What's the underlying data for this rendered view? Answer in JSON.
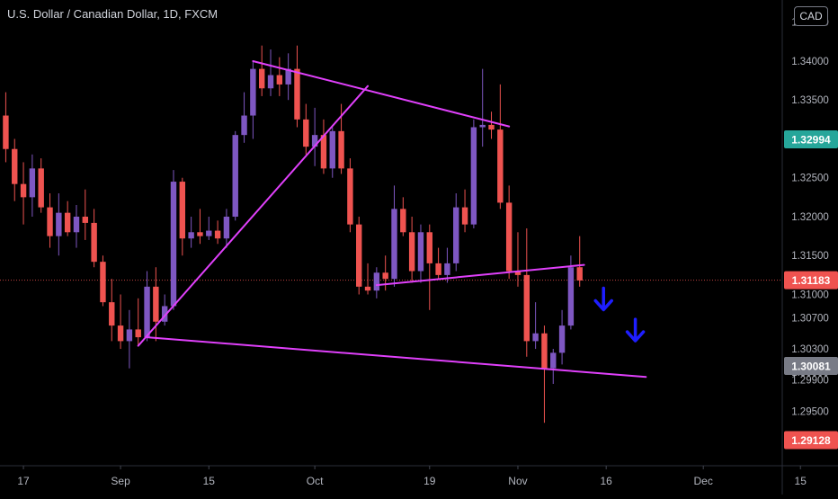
{
  "header": {
    "title": "U.S. Dollar / Canadian Dollar, 1D, FXCM",
    "currency": "CAD"
  },
  "colors": {
    "bull": "#7e57c2",
    "bear": "#ef5350",
    "trendline": "#e040fb",
    "arrow": "#1e1eff",
    "price_last": "#ef5350",
    "price_marker": "#26a69a",
    "price_gray": "#787b86",
    "price_low": "#ef5350"
  },
  "chart_data": {
    "type": "candlestick",
    "title": "U.S. Dollar / Canadian Dollar, 1D, FXCM",
    "y_ticks": [
      "1.34500",
      "1.34000",
      "1.33500",
      "1.33000",
      "1.32500",
      "1.32000",
      "1.31500",
      "1.31000",
      "1.30700",
      "1.30300",
      "1.30000",
      "1.29900",
      "1.29500"
    ],
    "x_ticks": [
      {
        "label": "17",
        "index": 3
      },
      {
        "label": "Sep",
        "index": 14
      },
      {
        "label": "15",
        "index": 24
      },
      {
        "label": "Oct",
        "index": 36
      },
      {
        "label": "19",
        "index": 49
      },
      {
        "label": "Nov",
        "index": 59
      },
      {
        "label": "16",
        "index": 69
      },
      {
        "label": "Dec",
        "index": 80
      },
      {
        "label": "15",
        "index": 91
      }
    ],
    "ylim": [
      1.2885,
      1.346
    ],
    "grid": false,
    "candles": [
      {
        "d": "Aug 13",
        "o": 1.3394,
        "h": 1.341,
        "l": 1.3325,
        "c": 1.333
      },
      {
        "d": "Aug 14",
        "o": 1.333,
        "h": 1.336,
        "l": 1.327,
        "c": 1.3287
      },
      {
        "d": "Aug 17",
        "o": 1.3287,
        "h": 1.33,
        "l": 1.322,
        "c": 1.3242
      },
      {
        "d": "Aug 18",
        "o": 1.3242,
        "h": 1.327,
        "l": 1.319,
        "c": 1.3225
      },
      {
        "d": "Aug 19",
        "o": 1.3225,
        "h": 1.328,
        "l": 1.32,
        "c": 1.3262
      },
      {
        "d": "Aug 20",
        "o": 1.3262,
        "h": 1.3275,
        "l": 1.3205,
        "c": 1.3212
      },
      {
        "d": "Aug 21",
        "o": 1.3212,
        "h": 1.323,
        "l": 1.316,
        "c": 1.3175
      },
      {
        "d": "Aug 24",
        "o": 1.3175,
        "h": 1.323,
        "l": 1.315,
        "c": 1.3205
      },
      {
        "d": "Aug 25",
        "o": 1.3205,
        "h": 1.322,
        "l": 1.3175,
        "c": 1.318
      },
      {
        "d": "Aug 26",
        "o": 1.318,
        "h": 1.3215,
        "l": 1.316,
        "c": 1.32
      },
      {
        "d": "Aug 27",
        "o": 1.32,
        "h": 1.3235,
        "l": 1.317,
        "c": 1.3192
      },
      {
        "d": "Aug 28",
        "o": 1.3192,
        "h": 1.321,
        "l": 1.3135,
        "c": 1.3142
      },
      {
        "d": "Aug 31",
        "o": 1.3142,
        "h": 1.315,
        "l": 1.3085,
        "c": 1.309
      },
      {
        "d": "Sep 1",
        "o": 1.309,
        "h": 1.312,
        "l": 1.304,
        "c": 1.306
      },
      {
        "d": "Sep 2",
        "o": 1.306,
        "h": 1.31,
        "l": 1.303,
        "c": 1.304
      },
      {
        "d": "Sep 3",
        "o": 1.304,
        "h": 1.308,
        "l": 1.3005,
        "c": 1.3055
      },
      {
        "d": "Sep 4",
        "o": 1.3055,
        "h": 1.3095,
        "l": 1.3035,
        "c": 1.3045
      },
      {
        "d": "Sep 7",
        "o": 1.3045,
        "h": 1.313,
        "l": 1.304,
        "c": 1.311
      },
      {
        "d": "Sep 8",
        "o": 1.311,
        "h": 1.3135,
        "l": 1.304,
        "c": 1.3065
      },
      {
        "d": "Sep 9",
        "o": 1.3065,
        "h": 1.31,
        "l": 1.306,
        "c": 1.3085
      },
      {
        "d": "Sep 10",
        "o": 1.3085,
        "h": 1.326,
        "l": 1.308,
        "c": 1.3245
      },
      {
        "d": "Sep 11",
        "o": 1.3245,
        "h": 1.325,
        "l": 1.315,
        "c": 1.3172
      },
      {
        "d": "Sep 14",
        "o": 1.3172,
        "h": 1.32,
        "l": 1.316,
        "c": 1.318
      },
      {
        "d": "Sep 15",
        "o": 1.318,
        "h": 1.321,
        "l": 1.3165,
        "c": 1.3175
      },
      {
        "d": "Sep 16",
        "o": 1.3175,
        "h": 1.32,
        "l": 1.317,
        "c": 1.3182
      },
      {
        "d": "Sep 17",
        "o": 1.3182,
        "h": 1.3195,
        "l": 1.3165,
        "c": 1.3172
      },
      {
        "d": "Sep 18",
        "o": 1.3172,
        "h": 1.321,
        "l": 1.316,
        "c": 1.32
      },
      {
        "d": "Sep 21",
        "o": 1.32,
        "h": 1.331,
        "l": 1.3195,
        "c": 1.3305
      },
      {
        "d": "Sep 22",
        "o": 1.3305,
        "h": 1.336,
        "l": 1.3295,
        "c": 1.333
      },
      {
        "d": "Sep 23",
        "o": 1.333,
        "h": 1.34,
        "l": 1.33,
        "c": 1.339
      },
      {
        "d": "Sep 24",
        "o": 1.339,
        "h": 1.342,
        "l": 1.3355,
        "c": 1.3365
      },
      {
        "d": "Sep 25",
        "o": 1.3365,
        "h": 1.3415,
        "l": 1.3355,
        "c": 1.3382
      },
      {
        "d": "Sep 28",
        "o": 1.3382,
        "h": 1.3405,
        "l": 1.3355,
        "c": 1.337
      },
      {
        "d": "Sep 29",
        "o": 1.337,
        "h": 1.341,
        "l": 1.335,
        "c": 1.339
      },
      {
        "d": "Sep 30",
        "o": 1.339,
        "h": 1.342,
        "l": 1.3315,
        "c": 1.3325
      },
      {
        "d": "Oct 1",
        "o": 1.3325,
        "h": 1.3345,
        "l": 1.328,
        "c": 1.329
      },
      {
        "d": "Oct 2",
        "o": 1.329,
        "h": 1.334,
        "l": 1.3265,
        "c": 1.3305
      },
      {
        "d": "Oct 5",
        "o": 1.3305,
        "h": 1.3325,
        "l": 1.3255,
        "c": 1.3262
      },
      {
        "d": "Oct 6",
        "o": 1.3262,
        "h": 1.3315,
        "l": 1.325,
        "c": 1.331
      },
      {
        "d": "Oct 7",
        "o": 1.331,
        "h": 1.3345,
        "l": 1.3255,
        "c": 1.3262
      },
      {
        "d": "Oct 8",
        "o": 1.3262,
        "h": 1.3275,
        "l": 1.318,
        "c": 1.319
      },
      {
        "d": "Oct 9",
        "o": 1.319,
        "h": 1.32,
        "l": 1.31,
        "c": 1.311
      },
      {
        "d": "Oct 12",
        "o": 1.311,
        "h": 1.314,
        "l": 1.31,
        "c": 1.3105
      },
      {
        "d": "Oct 13",
        "o": 1.3105,
        "h": 1.3135,
        "l": 1.3095,
        "c": 1.3128
      },
      {
        "d": "Oct 14",
        "o": 1.3128,
        "h": 1.315,
        "l": 1.3105,
        "c": 1.312
      },
      {
        "d": "Oct 15",
        "o": 1.312,
        "h": 1.324,
        "l": 1.311,
        "c": 1.321
      },
      {
        "d": "Oct 16",
        "o": 1.321,
        "h": 1.3225,
        "l": 1.3175,
        "c": 1.318
      },
      {
        "d": "Oct 19",
        "o": 1.318,
        "h": 1.32,
        "l": 1.3115,
        "c": 1.313
      },
      {
        "d": "Oct 20",
        "o": 1.313,
        "h": 1.319,
        "l": 1.3115,
        "c": 1.318
      },
      {
        "d": "Oct 21",
        "o": 1.318,
        "h": 1.319,
        "l": 1.308,
        "c": 1.314
      },
      {
        "d": "Oct 22",
        "o": 1.314,
        "h": 1.316,
        "l": 1.312,
        "c": 1.3125
      },
      {
        "d": "Oct 23",
        "o": 1.3125,
        "h": 1.316,
        "l": 1.3115,
        "c": 1.314
      },
      {
        "d": "Oct 26",
        "o": 1.314,
        "h": 1.323,
        "l": 1.313,
        "c": 1.3212
      },
      {
        "d": "Oct 27",
        "o": 1.3212,
        "h": 1.3235,
        "l": 1.318,
        "c": 1.319
      },
      {
        "d": "Oct 28",
        "o": 1.319,
        "h": 1.3325,
        "l": 1.3185,
        "c": 1.3315
      },
      {
        "d": "Oct 29",
        "o": 1.3315,
        "h": 1.339,
        "l": 1.329,
        "c": 1.3318
      },
      {
        "d": "Oct 30",
        "o": 1.3318,
        "h": 1.3335,
        "l": 1.33,
        "c": 1.3312
      },
      {
        "d": "Nov 2",
        "o": 1.3312,
        "h": 1.337,
        "l": 1.321,
        "c": 1.3218
      },
      {
        "d": "Nov 3",
        "o": 1.3218,
        "h": 1.324,
        "l": 1.312,
        "c": 1.313
      },
      {
        "d": "Nov 4",
        "o": 1.313,
        "h": 1.318,
        "l": 1.311,
        "c": 1.3125
      },
      {
        "d": "Nov 5",
        "o": 1.3125,
        "h": 1.3185,
        "l": 1.302,
        "c": 1.304
      },
      {
        "d": "Nov 6",
        "o": 1.304,
        "h": 1.309,
        "l": 1.303,
        "c": 1.305
      },
      {
        "d": "Nov 9",
        "o": 1.305,
        "h": 1.306,
        "l": 1.2935,
        "c": 1.3005
      },
      {
        "d": "Nov 10",
        "o": 1.3005,
        "h": 1.303,
        "l": 1.2985,
        "c": 1.3025
      },
      {
        "d": "Nov 11",
        "o": 1.3025,
        "h": 1.308,
        "l": 1.301,
        "c": 1.306
      },
      {
        "d": "Nov 12",
        "o": 1.306,
        "h": 1.315,
        "l": 1.3055,
        "c": 1.3135
      },
      {
        "d": "Nov 13",
        "o": 1.3135,
        "h": 1.3175,
        "l": 1.311,
        "c": 1.3118
      }
    ],
    "trendlines": [
      {
        "from": {
          "i": 29,
          "p": 1.34
        },
        "to": {
          "i": 58,
          "p": 1.3316
        }
      },
      {
        "from": {
          "i": 16,
          "p": 1.3034
        },
        "to": {
          "i": 42,
          "p": 1.3368
        }
      },
      {
        "from": {
          "i": 43,
          "p": 1.3112
        },
        "to": {
          "i": 66.5,
          "p": 1.3138
        }
      },
      {
        "from": {
          "i": 17,
          "p": 1.3045
        },
        "to": {
          "i": 73.5,
          "p": 1.2994
        }
      }
    ],
    "arrows": [
      {
        "i": 68.7,
        "p": 1.3085,
        "direction": "down"
      },
      {
        "i": 72.3,
        "p": 1.3045,
        "direction": "down"
      }
    ],
    "price_labels": [
      {
        "value": "1.32994",
        "price": 1.32994,
        "style": "marker"
      },
      {
        "value": "1.31183",
        "price": 1.31183,
        "style": "last"
      },
      {
        "value": "1.30081",
        "price": 1.30081,
        "style": "gray"
      },
      {
        "value": "1.29128",
        "price": 1.29128,
        "style": "low"
      }
    ],
    "last_price": 1.31183
  }
}
